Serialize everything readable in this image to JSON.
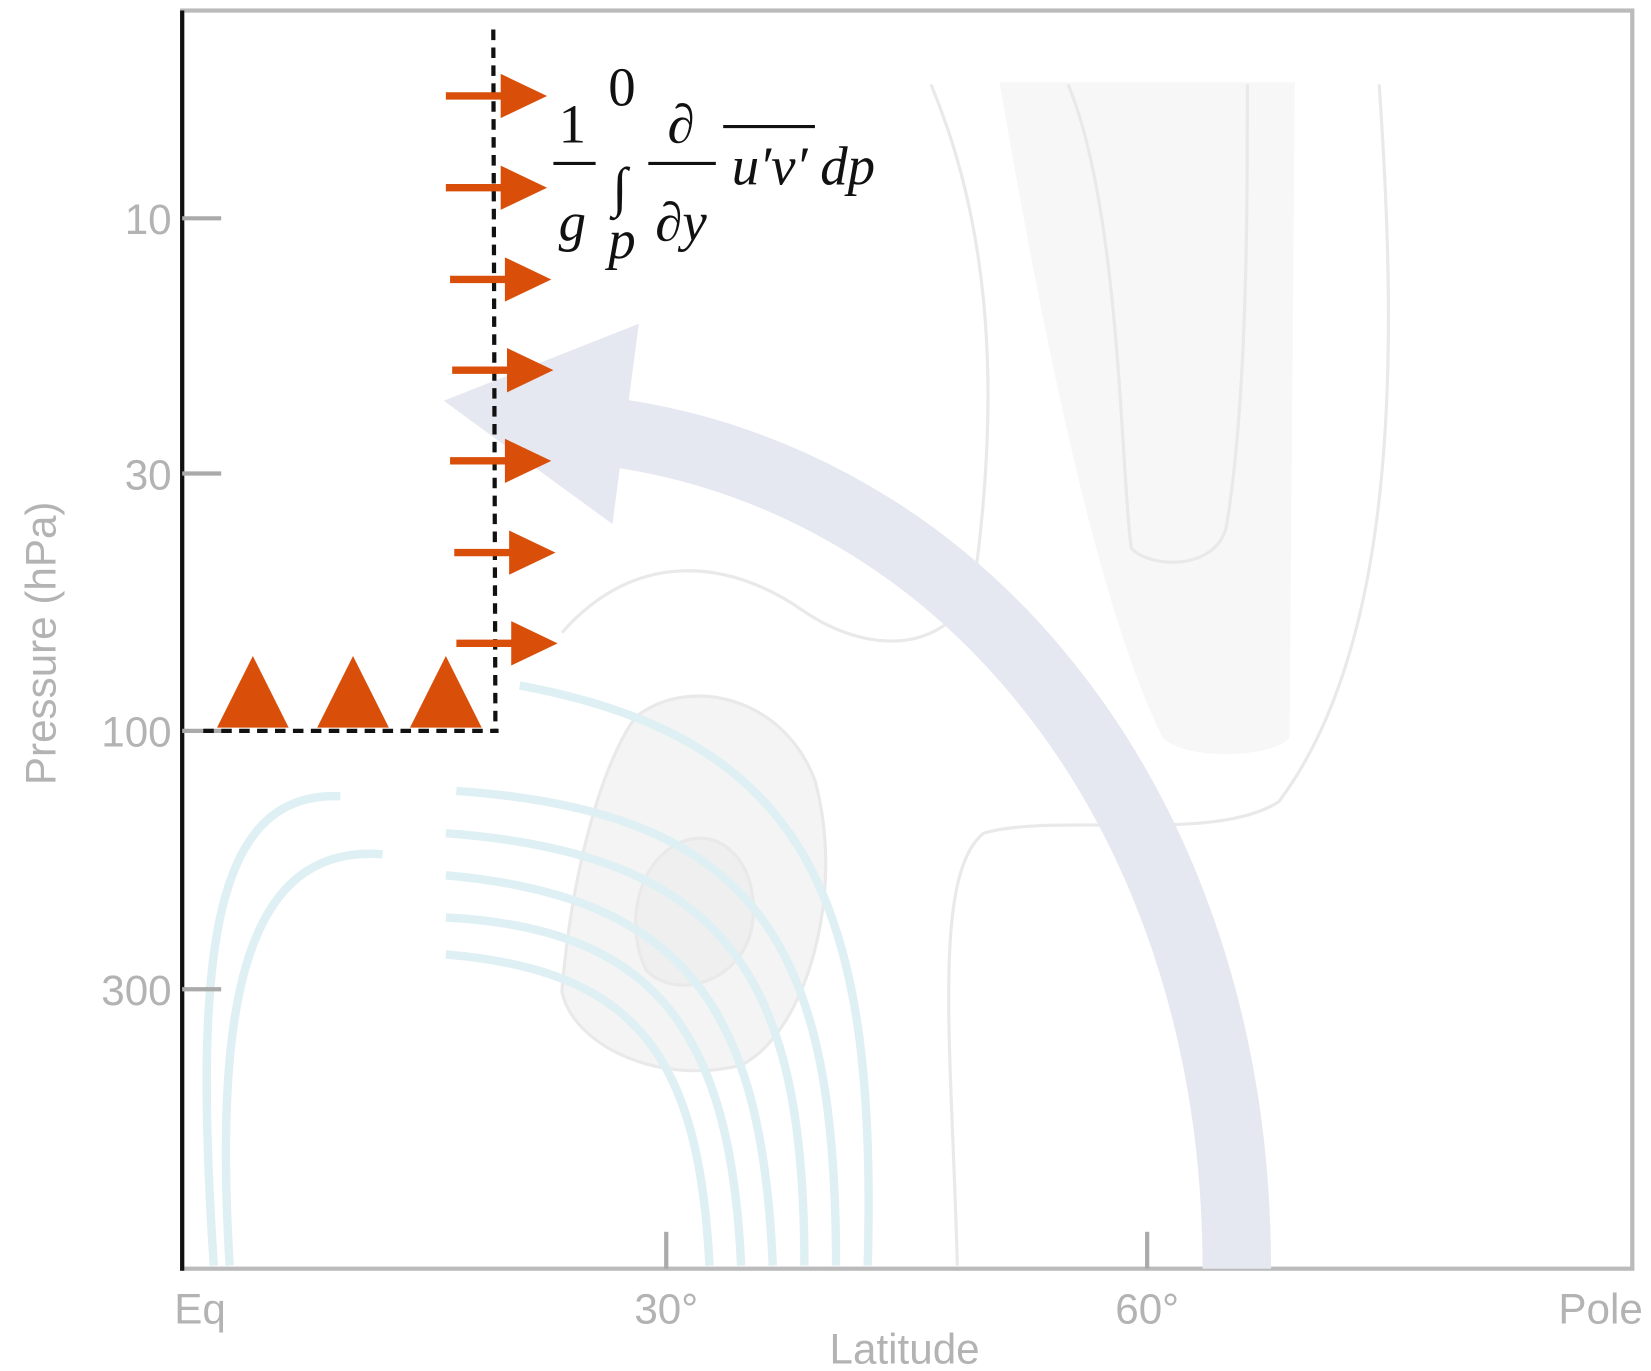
{
  "y_axis": {
    "label": "Pressure (hPa)",
    "ticks": [
      "10",
      "30",
      "100",
      "300"
    ]
  },
  "x_axis": {
    "label": "Latitude",
    "ticks": [
      "Eq",
      "30°",
      "60°",
      "Pole"
    ]
  },
  "formula": {
    "numerator": "1",
    "denominator": "g",
    "upper_limit": "0",
    "integral": "∫",
    "lower_limit": "p",
    "partial": "∂",
    "partial_y": "∂y",
    "flux": "u′v′",
    "differential": "dp"
  }
}
